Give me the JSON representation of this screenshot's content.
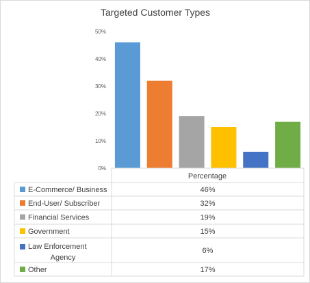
{
  "chart_data": {
    "type": "bar",
    "title": "Targeted Customer  Types",
    "categories": [
      "E-Commerce/ Business",
      "End-User/ Subscriber",
      "Financial Services",
      "Government",
      "Law Enforcement Agency",
      "Other"
    ],
    "category_lines": [
      [
        "E-Commerce/ Business"
      ],
      [
        "End-User/ Subscriber"
      ],
      [
        "Financial Services"
      ],
      [
        "Government"
      ],
      [
        "Law Enforcement",
        "Agency"
      ],
      [
        "Other"
      ]
    ],
    "series": [
      {
        "name": "Percentage",
        "values": [
          46,
          32,
          19,
          15,
          6,
          17
        ]
      }
    ],
    "value_labels": [
      "46%",
      "32%",
      "19%",
      "15%",
      "6%",
      "17%"
    ],
    "colors": [
      "#5b9bd5",
      "#ed7d31",
      "#a5a5a5",
      "#ffc000",
      "#4472c4",
      "#70ad47"
    ],
    "ylim": [
      0,
      50
    ],
    "yticks": [
      0,
      10,
      20,
      30,
      40,
      50
    ],
    "ytick_labels": [
      "0%",
      "10%",
      "20%",
      "30%",
      "40%",
      "50%"
    ],
    "grid": false,
    "legend": "data table with legend keys below chart"
  }
}
